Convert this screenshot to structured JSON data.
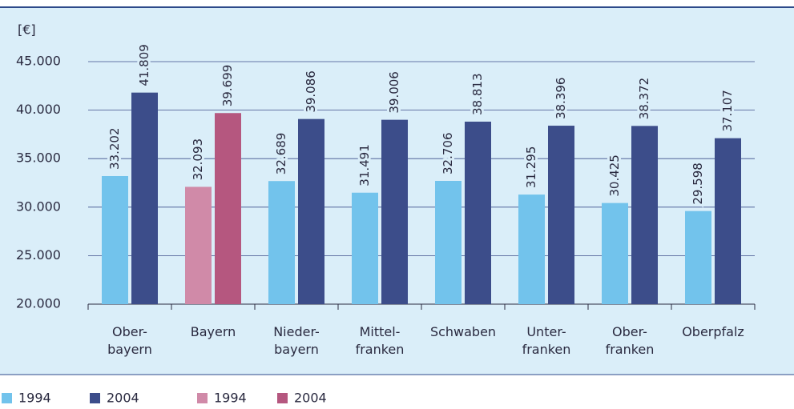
{
  "chart_data": {
    "type": "bar",
    "y_label": "[€]",
    "categories": [
      "Ober-\nbayern",
      "Bayern",
      "Nieder-\nbayern",
      "Mittel-\nfranken",
      "Schwaben",
      "Unter-\nfranken",
      "Ober-\nfranken",
      "Oberpfalz"
    ],
    "series": [
      {
        "name": "1994",
        "color": "#72c3ec",
        "values": [
          33202,
          null,
          32689,
          31491,
          32706,
          31295,
          30425,
          29598
        ],
        "value_labels": [
          "33.202",
          null,
          "32.689",
          "31.491",
          "32.706",
          "31.295",
          "30.425",
          "29.598"
        ]
      },
      {
        "name": "2004",
        "color": "#3c4d8a",
        "values": [
          41809,
          null,
          39086,
          39006,
          38813,
          38396,
          38372,
          37107
        ],
        "value_labels": [
          "41.809",
          null,
          "39.086",
          "39.006",
          "38.813",
          "38.396",
          "38.372",
          "37.107"
        ]
      },
      {
        "name": "1994",
        "color": "#d08aa8",
        "values": [
          null,
          32093,
          null,
          null,
          null,
          null,
          null,
          null
        ],
        "value_labels": [
          null,
          "32.093",
          null,
          null,
          null,
          null,
          null,
          null
        ]
      },
      {
        "name": "2004",
        "color": "#b5577f",
        "values": [
          null,
          39699,
          null,
          null,
          null,
          null,
          null,
          null
        ],
        "value_labels": [
          null,
          "39.699",
          null,
          null,
          null,
          null,
          null,
          null
        ]
      }
    ],
    "ylim": [
      20000,
      45000
    ],
    "yticks": [
      {
        "value": 20000,
        "label": "20.000"
      },
      {
        "value": 25000,
        "label": "25.000"
      },
      {
        "value": 30000,
        "label": "30.000"
      },
      {
        "value": 35000,
        "label": "35.000"
      },
      {
        "value": 40000,
        "label": "40.000"
      },
      {
        "value": 45000,
        "label": "45.000"
      }
    ],
    "grid": true
  }
}
